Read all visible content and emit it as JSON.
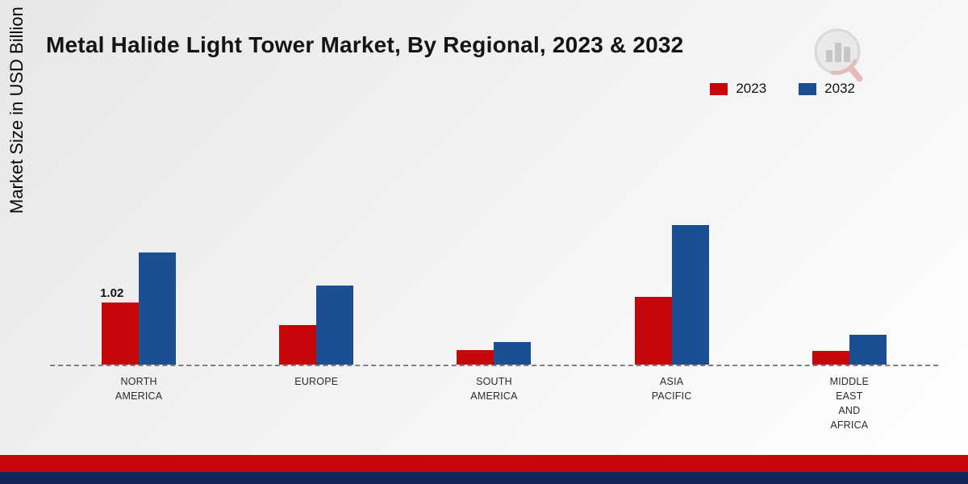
{
  "page": {
    "title": "Metal Halide Light Tower Market, By Regional, 2023 & 2032"
  },
  "colors": {
    "series_2023": "#c5070b",
    "series_2032": "#1b4f91",
    "footer_red": "#c5070b",
    "footer_blue": "#16265c",
    "baseline": "#808080"
  },
  "chart_data": {
    "type": "bar",
    "title": "Metal Halide Light Tower Market, By Regional, 2023 & 2032",
    "xlabel": "",
    "ylabel": "Market Size in USD Billion",
    "categories": [
      "NORTH AMERICA",
      "EUROPE",
      "SOUTH AMERICA",
      "ASIA PACIFIC",
      "MIDDLE EAST AND AFRICA"
    ],
    "category_display": [
      "NORTH\nAMERICA",
      "EUROPE",
      "SOUTH\nAMERICA",
      "ASIA\nPACIFIC",
      "MIDDLE\nEAST\nAND\nAFRICA"
    ],
    "series": [
      {
        "name": "2023",
        "color": "#c5070b",
        "values": [
          1.02,
          0.65,
          0.24,
          1.12,
          0.22
        ]
      },
      {
        "name": "2032",
        "color": "#1b4f91",
        "values": [
          1.85,
          1.3,
          0.37,
          2.3,
          0.49
        ]
      }
    ],
    "data_labels": [
      {
        "series": "2023",
        "category": "NORTH AMERICA",
        "text": "1.02"
      }
    ],
    "ylim": [
      0,
      2.5
    ],
    "grid": false,
    "axis_line_style": "dashed",
    "legend_position": "top-right",
    "legend": [
      "2023",
      "2032"
    ]
  }
}
